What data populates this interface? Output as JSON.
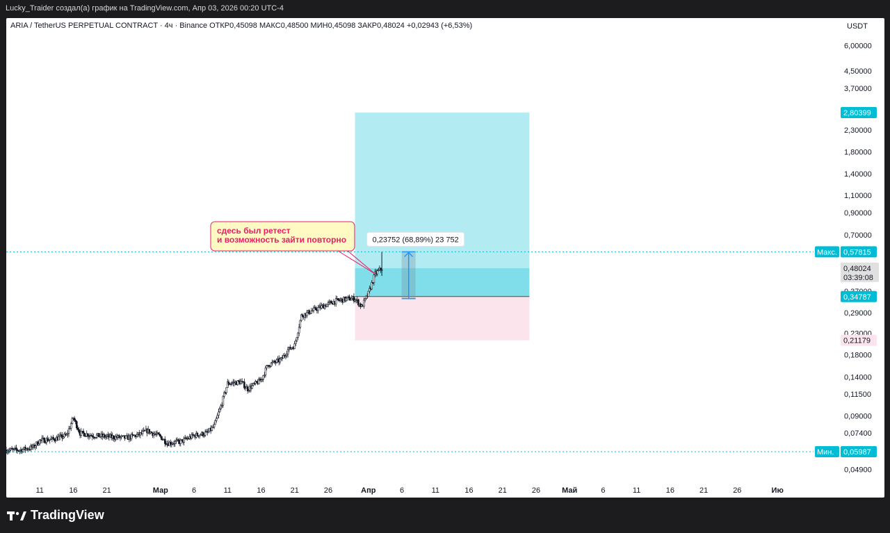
{
  "top_caption": "Lucky_Traider создал(а) график на TradingView.com, Апр 03, 2026 00:20 UTC-4",
  "footer_logo": "TradingView",
  "chart_data": {
    "type": "candlestick",
    "symbol_line": "ARIA / TetherUS PERPETUAL CONTRACT · 4ч · Binance",
    "ohlc_labels": {
      "open": "ОТКР",
      "high": "МАКС",
      "low": "МИН",
      "close": "ЗАКР"
    },
    "ohlc_values": {
      "open": "0,45098",
      "high": "0,48500",
      "low": "0,45098",
      "close": "0,48024",
      "change": "+0,02943 (+6,53%)"
    },
    "price_axis_unit": "USDT",
    "y_scale": "log",
    "ylim": [
      0.043,
      7.0
    ],
    "y_ticks": [
      6.0,
      4.5,
      3.7,
      2.3,
      1.8,
      1.4,
      1.1,
      0.9,
      0.7,
      0.37,
      0.29,
      0.23,
      0.18,
      0.14,
      0.115,
      0.09,
      0.074,
      0.049
    ],
    "y_tick_labels": [
      "6,00000",
      "4,50000",
      "3,70000",
      "2,30000",
      "1,80000",
      "1,40000",
      "1,10000",
      "0,90000",
      "0,70000",
      "0,37000",
      "0,29000",
      "0,23000",
      "0,18000",
      "0,14000",
      "0,11500",
      "0,09000",
      "0,07400",
      "0,04900"
    ],
    "x_ticks": [
      "11",
      "16",
      "21",
      "Мар",
      "6",
      "11",
      "16",
      "21",
      "26",
      "Апр",
      "6",
      "11",
      "16",
      "21",
      "26",
      "Май",
      "6",
      "11",
      "16",
      "21",
      "26",
      "Ию"
    ],
    "x_range": [
      "2026-02-06",
      "2026-06-10"
    ],
    "x_tick_dates": [
      "2026-02-11",
      "2026-02-16",
      "2026-02-21",
      "2026-03-01",
      "2026-03-06",
      "2026-03-11",
      "2026-03-16",
      "2026-03-21",
      "2026-03-26",
      "2026-04-01",
      "2026-04-06",
      "2026-04-11",
      "2026-04-16",
      "2026-04-21",
      "2026-04-26",
      "2026-05-01",
      "2026-05-06",
      "2026-05-11",
      "2026-05-16",
      "2026-05-21",
      "2026-05-26",
      "2026-06-01"
    ],
    "price_path": [
      [
        "2026-02-06",
        0.061
      ],
      [
        "2026-02-08",
        0.061
      ],
      [
        "2026-02-10",
        0.063
      ],
      [
        "2026-02-11",
        0.068
      ],
      [
        "2026-02-13",
        0.069
      ],
      [
        "2026-02-15",
        0.072
      ],
      [
        "2026-02-16",
        0.088
      ],
      [
        "2026-02-17",
        0.074
      ],
      [
        "2026-02-19",
        0.072
      ],
      [
        "2026-02-21",
        0.071
      ],
      [
        "2026-02-24",
        0.07
      ],
      [
        "2026-02-26",
        0.073
      ],
      [
        "2026-02-27",
        0.076
      ],
      [
        "2026-03-01",
        0.071
      ],
      [
        "2026-03-02",
        0.066
      ],
      [
        "2026-03-04",
        0.067
      ],
      [
        "2026-03-06",
        0.072
      ],
      [
        "2026-03-08",
        0.074
      ],
      [
        "2026-03-09",
        0.08
      ],
      [
        "2026-03-10",
        0.1
      ],
      [
        "2026-03-11",
        0.13
      ],
      [
        "2026-03-13",
        0.132
      ],
      [
        "2026-03-14",
        0.122
      ],
      [
        "2026-03-16",
        0.135
      ],
      [
        "2026-03-17",
        0.16
      ],
      [
        "2026-03-19",
        0.17
      ],
      [
        "2026-03-20",
        0.19
      ],
      [
        "2026-03-21",
        0.2
      ],
      [
        "2026-03-22",
        0.28
      ],
      [
        "2026-03-24",
        0.3
      ],
      [
        "2026-03-26",
        0.32
      ],
      [
        "2026-03-27",
        0.33
      ],
      [
        "2026-03-29",
        0.34
      ],
      [
        "2026-03-30",
        0.34
      ],
      [
        "2026-03-31",
        0.31
      ],
      [
        "2026-04-01",
        0.36
      ],
      [
        "2026-04-02",
        0.45
      ],
      [
        "2026-04-03",
        0.48
      ]
    ],
    "price_labels": {
      "current": "0,48024",
      "countdown": "03:39:08",
      "target": "2,80399",
      "entry": "0,34787",
      "stop": "0,21179",
      "high_tag": "Макс.",
      "high_value": "0,57815",
      "low_tag": "Мин.",
      "low_value": "0,05987"
    },
    "high_line": 0.57815,
    "low_line": 0.05987,
    "position": {
      "type": "long",
      "entry": 0.34787,
      "target": 2.80399,
      "stop": 0.21179,
      "current": 0.48024,
      "start_date": "2026-03-30",
      "end_date": "2026-04-25",
      "profit_color": "#b2ebf2",
      "loss_color": "#fce4ec",
      "active_color": "#80deea"
    },
    "measure": {
      "label": "0,23752 (68,89%) 23 752",
      "date": "2026-04-07",
      "from": 0.34,
      "to": 0.578
    },
    "annotation": {
      "text_lines": [
        "сдесь был ретест",
        "и возможность зайти повторно"
      ],
      "color": "#e91e63",
      "background": "#fff9c4",
      "anchor_date": "2026-04-02",
      "anchor_price": 0.45
    }
  }
}
